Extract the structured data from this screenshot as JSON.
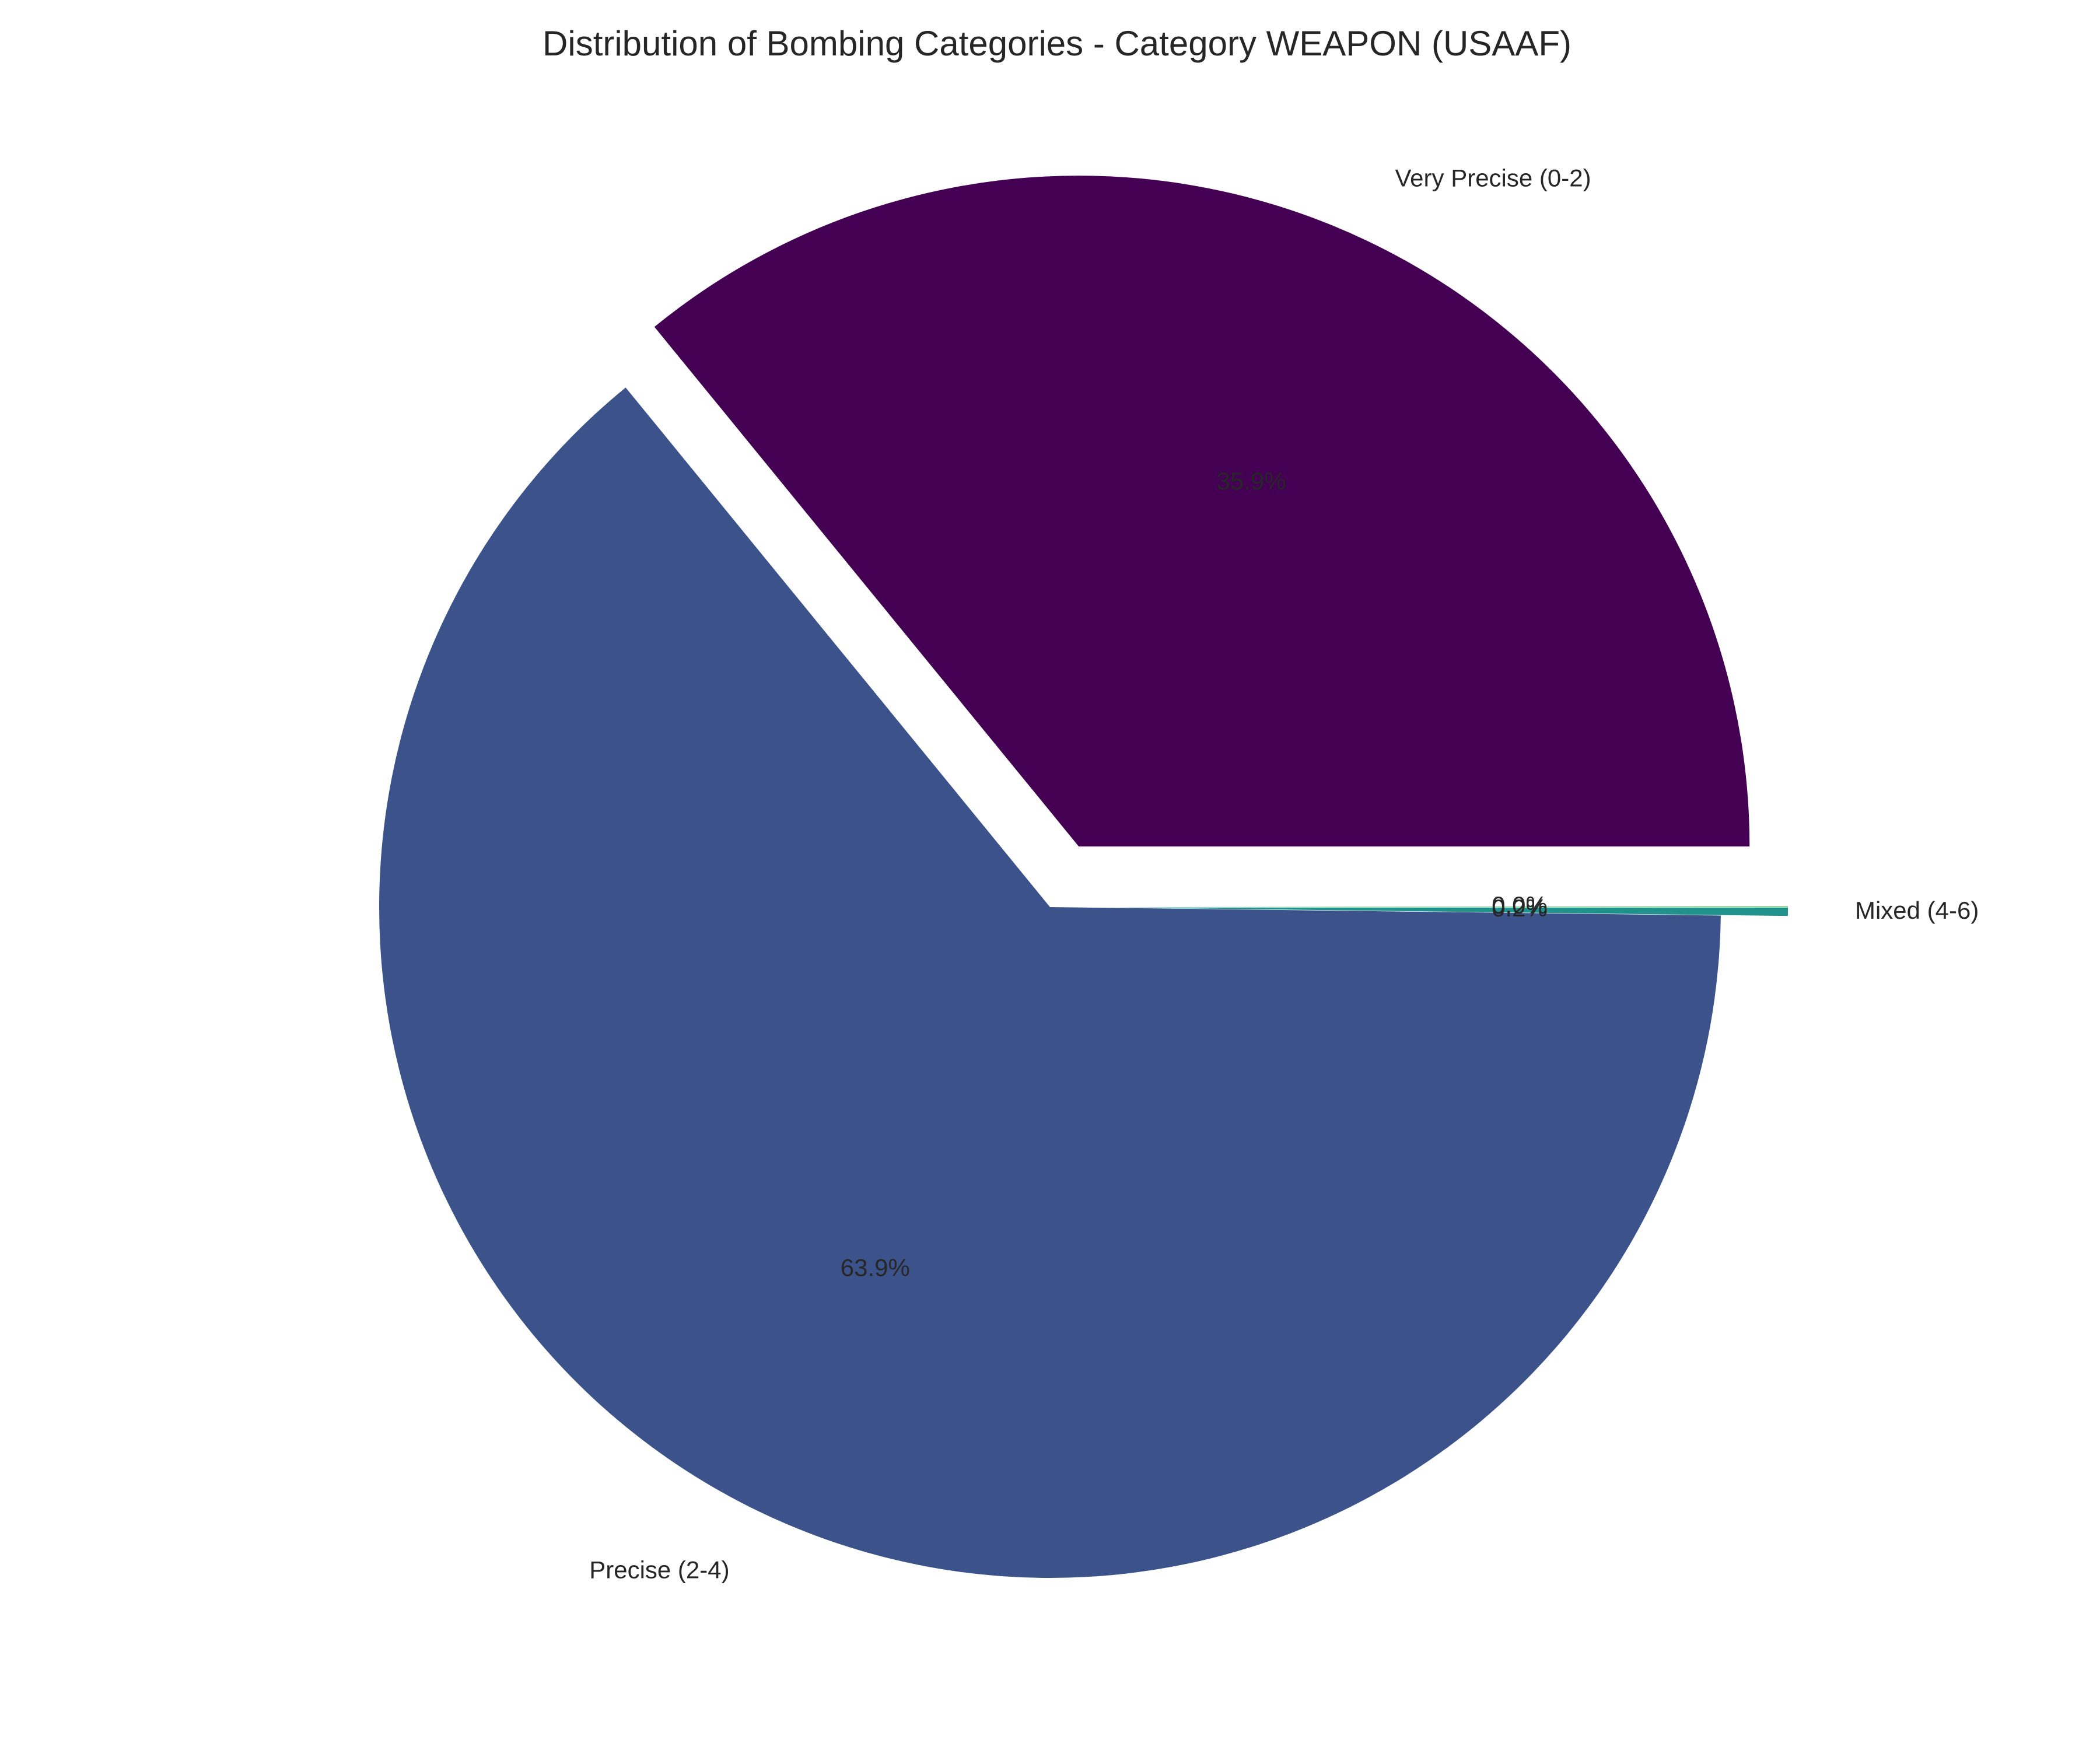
{
  "chart_data": {
    "type": "pie",
    "title": "Distribution of Bombing Categories - Category WEAPON (USAAF)",
    "slices": [
      {
        "label": "Very Precise (0-2)",
        "value": 35.9,
        "pct_label": "35.9%",
        "color": "#440154",
        "exploded": true
      },
      {
        "label": "Precise (2-4)",
        "value": 63.9,
        "pct_label": "63.9%",
        "color": "#3b528b",
        "exploded": false
      },
      {
        "label": "Mixed (4-6)",
        "value": 0.2,
        "pct_label": "0.2%",
        "color": "#21918c",
        "exploded": true
      },
      {
        "label": "",
        "value": 0.0,
        "pct_label": "0.0%",
        "color": "#5ec962",
        "exploded": true
      }
    ],
    "start_angle_deg": 0,
    "direction": "counterclockwise",
    "legend": "none"
  }
}
